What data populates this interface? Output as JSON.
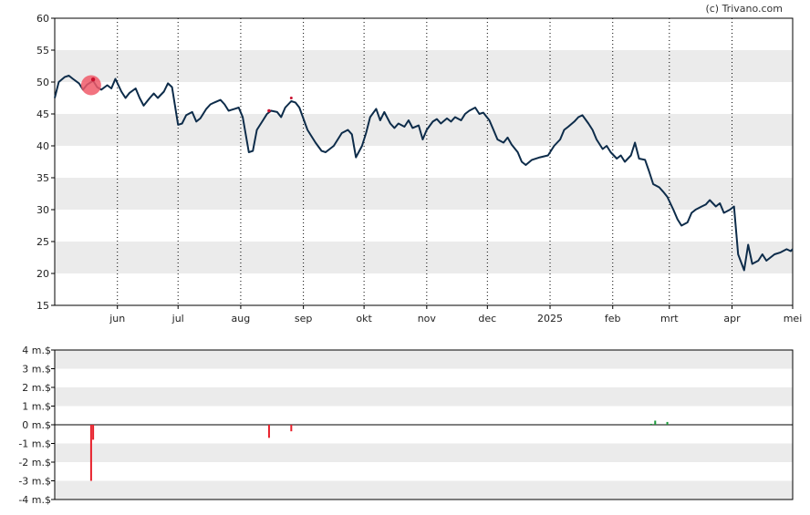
{
  "credit": "(c) Trivano.com",
  "colors": {
    "price_line": "#0d2c4a",
    "band": "#ebebeb",
    "marker": "#f05a6a",
    "negative_bar": "#e8202a",
    "positive_bar": "#1a9a3a",
    "axis": "#000000"
  },
  "chart_data": [
    {
      "type": "line",
      "name": "price",
      "y_ticks": [
        "15",
        "20",
        "25",
        "30",
        "35",
        "40",
        "45",
        "50",
        "55",
        "60"
      ],
      "ylim": [
        15,
        60
      ],
      "grid": "vertical dotted at month ticks, alternating horizontal bands",
      "x_ticks": [
        {
          "label": "jun",
          "date": "2024-06-01"
        },
        {
          "label": "jul",
          "date": "2024-07-01"
        },
        {
          "label": "aug",
          "date": "2024-08-01"
        },
        {
          "label": "sep",
          "date": "2024-09-01"
        },
        {
          "label": "okt",
          "date": "2024-10-01"
        },
        {
          "label": "nov",
          "date": "2024-11-01"
        },
        {
          "label": "dec",
          "date": "2024-12-01"
        },
        {
          "label": "2025",
          "date": "2025-01-01"
        },
        {
          "label": "feb",
          "date": "2025-02-01"
        },
        {
          "label": "mrt",
          "date": "2025-03-01"
        },
        {
          "label": "apr",
          "date": "2025-04-01"
        },
        {
          "label": "mei",
          "date": "2025-05-01"
        }
      ],
      "xlim": [
        "2024-05-01",
        "2025-05-01"
      ],
      "points": [
        [
          "2024-05-01",
          47.5
        ],
        [
          "2024-05-03",
          50.0
        ],
        [
          "2024-05-06",
          50.8
        ],
        [
          "2024-05-08",
          51.0
        ],
        [
          "2024-05-10",
          50.5
        ],
        [
          "2024-05-13",
          49.8
        ],
        [
          "2024-05-15",
          48.8
        ],
        [
          "2024-05-17",
          49.6
        ],
        [
          "2024-05-20",
          50.2
        ],
        [
          "2024-05-22",
          49.2
        ],
        [
          "2024-05-24",
          48.8
        ],
        [
          "2024-05-27",
          49.5
        ],
        [
          "2024-05-29",
          49.0
        ],
        [
          "2024-05-31",
          50.5
        ],
        [
          "2024-06-03",
          48.5
        ],
        [
          "2024-06-05",
          47.5
        ],
        [
          "2024-06-07",
          48.3
        ],
        [
          "2024-06-10",
          49.0
        ],
        [
          "2024-06-12",
          47.5
        ],
        [
          "2024-06-14",
          46.3
        ],
        [
          "2024-06-17",
          47.5
        ],
        [
          "2024-06-19",
          48.2
        ],
        [
          "2024-06-21",
          47.5
        ],
        [
          "2024-06-24",
          48.5
        ],
        [
          "2024-06-26",
          49.8
        ],
        [
          "2024-06-28",
          49.2
        ],
        [
          "2024-07-01",
          43.3
        ],
        [
          "2024-07-03",
          43.5
        ],
        [
          "2024-07-05",
          44.8
        ],
        [
          "2024-07-08",
          45.3
        ],
        [
          "2024-07-10",
          43.8
        ],
        [
          "2024-07-12",
          44.3
        ],
        [
          "2024-07-15",
          45.8
        ],
        [
          "2024-07-17",
          46.5
        ],
        [
          "2024-07-19",
          46.8
        ],
        [
          "2024-07-22",
          47.2
        ],
        [
          "2024-07-24",
          46.5
        ],
        [
          "2024-07-26",
          45.5
        ],
        [
          "2024-07-29",
          45.8
        ],
        [
          "2024-07-31",
          46.0
        ],
        [
          "2024-08-02",
          44.5
        ],
        [
          "2024-08-05",
          39.0
        ],
        [
          "2024-08-07",
          39.2
        ],
        [
          "2024-08-09",
          42.5
        ],
        [
          "2024-08-12",
          44.0
        ],
        [
          "2024-08-14",
          45.0
        ],
        [
          "2024-08-16",
          45.5
        ],
        [
          "2024-08-19",
          45.3
        ],
        [
          "2024-08-21",
          44.5
        ],
        [
          "2024-08-23",
          46.0
        ],
        [
          "2024-08-26",
          47.0
        ],
        [
          "2024-08-28",
          46.8
        ],
        [
          "2024-08-30",
          46.0
        ],
        [
          "2024-09-03",
          42.5
        ],
        [
          "2024-09-05",
          41.5
        ],
        [
          "2024-09-07",
          40.5
        ],
        [
          "2024-09-10",
          39.2
        ],
        [
          "2024-09-12",
          39.0
        ],
        [
          "2024-09-16",
          40.0
        ],
        [
          "2024-09-18",
          41.0
        ],
        [
          "2024-09-20",
          42.0
        ],
        [
          "2024-09-23",
          42.5
        ],
        [
          "2024-09-25",
          41.8
        ],
        [
          "2024-09-27",
          38.2
        ],
        [
          "2024-09-30",
          40.0
        ],
        [
          "2024-10-02",
          42.0
        ],
        [
          "2024-10-04",
          44.5
        ],
        [
          "2024-10-07",
          45.8
        ],
        [
          "2024-10-09",
          44.0
        ],
        [
          "2024-10-11",
          45.3
        ],
        [
          "2024-10-14",
          43.5
        ],
        [
          "2024-10-16",
          42.8
        ],
        [
          "2024-10-18",
          43.5
        ],
        [
          "2024-10-21",
          43.0
        ],
        [
          "2024-10-23",
          44.0
        ],
        [
          "2024-10-25",
          42.8
        ],
        [
          "2024-10-28",
          43.2
        ],
        [
          "2024-10-30",
          41.0
        ],
        [
          "2024-11-01",
          42.5
        ],
        [
          "2024-11-04",
          43.8
        ],
        [
          "2024-11-06",
          44.2
        ],
        [
          "2024-11-08",
          43.5
        ],
        [
          "2024-11-11",
          44.3
        ],
        [
          "2024-11-13",
          43.8
        ],
        [
          "2024-11-15",
          44.5
        ],
        [
          "2024-11-18",
          44.0
        ],
        [
          "2024-11-20",
          45.0
        ],
        [
          "2024-11-22",
          45.5
        ],
        [
          "2024-11-25",
          46.0
        ],
        [
          "2024-11-27",
          45.0
        ],
        [
          "2024-11-29",
          45.2
        ],
        [
          "2024-12-02",
          44.0
        ],
        [
          "2024-12-04",
          42.5
        ],
        [
          "2024-12-06",
          41.0
        ],
        [
          "2024-12-09",
          40.5
        ],
        [
          "2024-12-11",
          41.3
        ],
        [
          "2024-12-13",
          40.2
        ],
        [
          "2024-12-16",
          39.0
        ],
        [
          "2024-12-18",
          37.5
        ],
        [
          "2024-12-20",
          37.0
        ],
        [
          "2024-12-23",
          37.8
        ],
        [
          "2024-12-27",
          38.2
        ],
        [
          "2024-12-31",
          38.5
        ],
        [
          "2025-01-03",
          40.0
        ],
        [
          "2025-01-06",
          41.0
        ],
        [
          "2025-01-08",
          42.5
        ],
        [
          "2025-01-10",
          43.0
        ],
        [
          "2025-01-13",
          43.8
        ],
        [
          "2025-01-15",
          44.5
        ],
        [
          "2025-01-17",
          44.8
        ],
        [
          "2025-01-20",
          43.5
        ],
        [
          "2025-01-22",
          42.5
        ],
        [
          "2025-01-24",
          41.0
        ],
        [
          "2025-01-27",
          39.5
        ],
        [
          "2025-01-29",
          40.0
        ],
        [
          "2025-01-31",
          39.0
        ],
        [
          "2025-02-03",
          38.0
        ],
        [
          "2025-02-05",
          38.5
        ],
        [
          "2025-02-07",
          37.5
        ],
        [
          "2025-02-10",
          38.5
        ],
        [
          "2025-02-12",
          40.5
        ],
        [
          "2025-02-14",
          38.0
        ],
        [
          "2025-02-17",
          37.8
        ],
        [
          "2025-02-19",
          36.0
        ],
        [
          "2025-02-21",
          34.0
        ],
        [
          "2025-02-24",
          33.5
        ],
        [
          "2025-02-26",
          32.8
        ],
        [
          "2025-02-28",
          32.0
        ],
        [
          "2025-03-03",
          30.0
        ],
        [
          "2025-03-05",
          28.5
        ],
        [
          "2025-03-07",
          27.5
        ],
        [
          "2025-03-10",
          28.0
        ],
        [
          "2025-03-12",
          29.5
        ],
        [
          "2025-03-14",
          30.0
        ],
        [
          "2025-03-17",
          30.5
        ],
        [
          "2025-03-19",
          30.8
        ],
        [
          "2025-03-21",
          31.5
        ],
        [
          "2025-03-24",
          30.5
        ],
        [
          "2025-03-26",
          31.0
        ],
        [
          "2025-03-28",
          29.5
        ],
        [
          "2025-03-31",
          30.0
        ],
        [
          "2025-04-02",
          30.5
        ],
        [
          "2025-04-04",
          23.0
        ],
        [
          "2025-04-07",
          20.5
        ],
        [
          "2025-04-09",
          24.5
        ],
        [
          "2025-04-11",
          21.5
        ],
        [
          "2025-04-14",
          22.0
        ],
        [
          "2025-04-16",
          23.0
        ],
        [
          "2025-04-18",
          22.0
        ],
        [
          "2025-04-22",
          23.0
        ],
        [
          "2025-04-25",
          23.3
        ],
        [
          "2025-04-28",
          23.8
        ],
        [
          "2025-04-30",
          23.5
        ],
        [
          "2025-05-01",
          23.8
        ]
      ]
    },
    {
      "type": "bar",
      "name": "volume",
      "y_ticks": [
        "-4 m.$",
        "-3 m.$",
        "-2 m.$",
        "-1 m.$",
        "0 m.$",
        "1 m.$",
        "2 m.$",
        "3 m.$",
        "4 m.$"
      ],
      "ylim": [
        -4,
        4
      ],
      "grid": "alternating horizontal bands",
      "bars": [
        {
          "date": "2024-05-19",
          "value": -3.0
        },
        {
          "date": "2024-05-20",
          "value": -0.8
        },
        {
          "date": "2024-08-15",
          "value": -0.7
        },
        {
          "date": "2024-08-26",
          "value": -0.35
        },
        {
          "date": "2025-02-20",
          "value": 0.05
        },
        {
          "date": "2025-02-22",
          "value": 0.22
        },
        {
          "date": "2025-02-28",
          "value": 0.15
        }
      ]
    }
  ]
}
